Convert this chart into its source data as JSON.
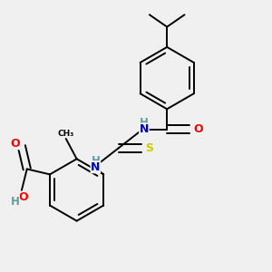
{
  "background_color": "#f0f0f0",
  "bond_color": "#000000",
  "atom_colors": {
    "N": "#0000cd",
    "O": "#ff0000",
    "S": "#cccc00",
    "C": "#000000",
    "H": "#5f9ea0"
  },
  "figsize": [
    3.0,
    3.0
  ],
  "dpi": 100,
  "lw": 1.4
}
